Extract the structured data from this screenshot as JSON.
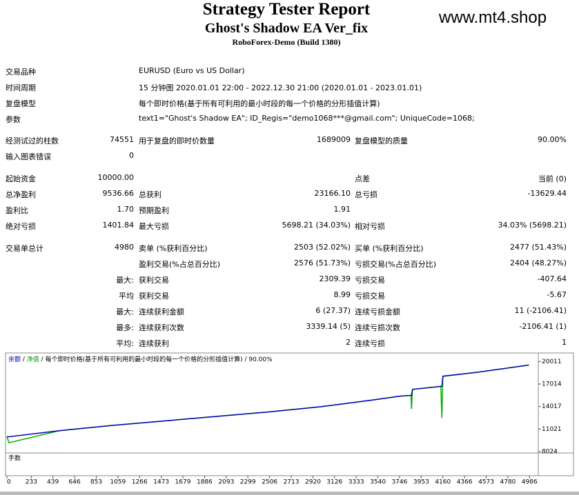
{
  "header": {
    "title": "Strategy Tester Report",
    "subtitle": "Ghost's Shadow EA Ver_fix",
    "server": "RoboForex-Demo (Build 1380)",
    "watermark": "www.mt4.shop"
  },
  "info": [
    [
      "交易品种",
      "EURUSD (Euro vs US Dollar)"
    ],
    [
      "时间周期",
      "15 分钟图 2020.01.01 22:00 - 2022.12.30 21:00 (2020.01.01 - 2023.01.01)"
    ],
    [
      "复盘模型",
      "每个即时价格(基于所有可利用的最小时段的每一个价格的分形插值计算)"
    ],
    [
      "参数",
      "text1=\"Ghost's Shadow EA\"; ID_Regis=\"demo1068***@gmail.com\"; UniqueCode=1068;"
    ]
  ],
  "stats": [
    [
      "经测试过的柱数",
      "74551",
      "用于复盘的即时价数量",
      "1689009",
      "复盘模型的质量",
      "90.00%"
    ],
    [
      "输入图表错误",
      "0",
      null,
      null,
      null,
      null
    ],
    [
      "起始资金",
      "10000.00",
      null,
      null,
      "点差",
      "当前 (0)"
    ],
    [
      "总净盈利",
      "9536.66",
      "总获利",
      "23166.10",
      "总亏损",
      "-13629.44"
    ],
    [
      "盈利比",
      "1.70",
      "预期盈利",
      "1.91",
      null,
      null
    ],
    [
      "绝对亏损",
      "1401.84",
      "最大亏损",
      "5698.21 (34.03%)",
      "相对亏损",
      "34.03% (5698.21)"
    ],
    [
      "交易单总计",
      "4980",
      "卖单 (%获利百分比)",
      "2503 (52.02%)",
      "买单 (%获利百分比)",
      "2477 (51.43%)"
    ],
    [
      null,
      null,
      "盈利交易(%占总百分比)",
      "2576 (51.73%)",
      "亏损交易(%占总百分比)",
      "2404 (48.27%)"
    ],
    [
      null,
      "最大:",
      "获利交易",
      "2309.39",
      "亏损交易",
      "-407.64"
    ],
    [
      null,
      "平均",
      "获利交易",
      "8.99",
      "亏损交易",
      "-5.67"
    ],
    [
      null,
      "最大:",
      "连续获利金额",
      "6 (27.37)",
      "连续亏损金额",
      "11 (-2106.41)"
    ],
    [
      null,
      "最多:",
      "连续获利次数",
      "3339.14 (5)",
      "连续亏损次数",
      "-2106.41 (1)"
    ],
    [
      null,
      "平均:",
      "连续获利",
      "2",
      "连续亏损",
      "1"
    ]
  ],
  "chart_data": {
    "type": "line",
    "subtitle": "每个即时价格(基于所有可利用的最小时段的每一个价格的分形插值计算)",
    "quality": "90.00%",
    "lots_panel_title": "手数",
    "x": [
      0,
      20,
      500,
      1000,
      1500,
      2000,
      2500,
      3000,
      3500,
      3750,
      3855,
      3860,
      3870,
      4140,
      4150,
      4160,
      4500,
      4980
    ],
    "series": [
      {
        "name": "净值",
        "color": "#00b000",
        "values": [
          10000,
          9200,
          10800,
          11500,
          12100,
          12700,
          13300,
          14000,
          14900,
          15400,
          15500,
          13700,
          16300,
          16700,
          12500,
          18050,
          18600,
          19537
        ]
      },
      {
        "name": "余额",
        "color": "#0000b0",
        "values": [
          10000,
          10000,
          10800,
          11500,
          12100,
          12700,
          13300,
          14000,
          14900,
          15400,
          15500,
          15500,
          16300,
          16700,
          16700,
          18050,
          18600,
          19537
        ]
      }
    ],
    "xlim": [
      0,
      5070
    ],
    "ylim": [
      8024,
      21050
    ],
    "xticks": [
      0,
      233,
      439,
      646,
      853,
      1059,
      1266,
      1473,
      1679,
      1886,
      2093,
      2299,
      2506,
      2713,
      2920,
      3126,
      3333,
      3540,
      3746,
      3953,
      4160,
      4366,
      4573,
      4780,
      4986
    ],
    "yticks": [
      20011,
      17014,
      14017,
      11021,
      8024
    ]
  }
}
